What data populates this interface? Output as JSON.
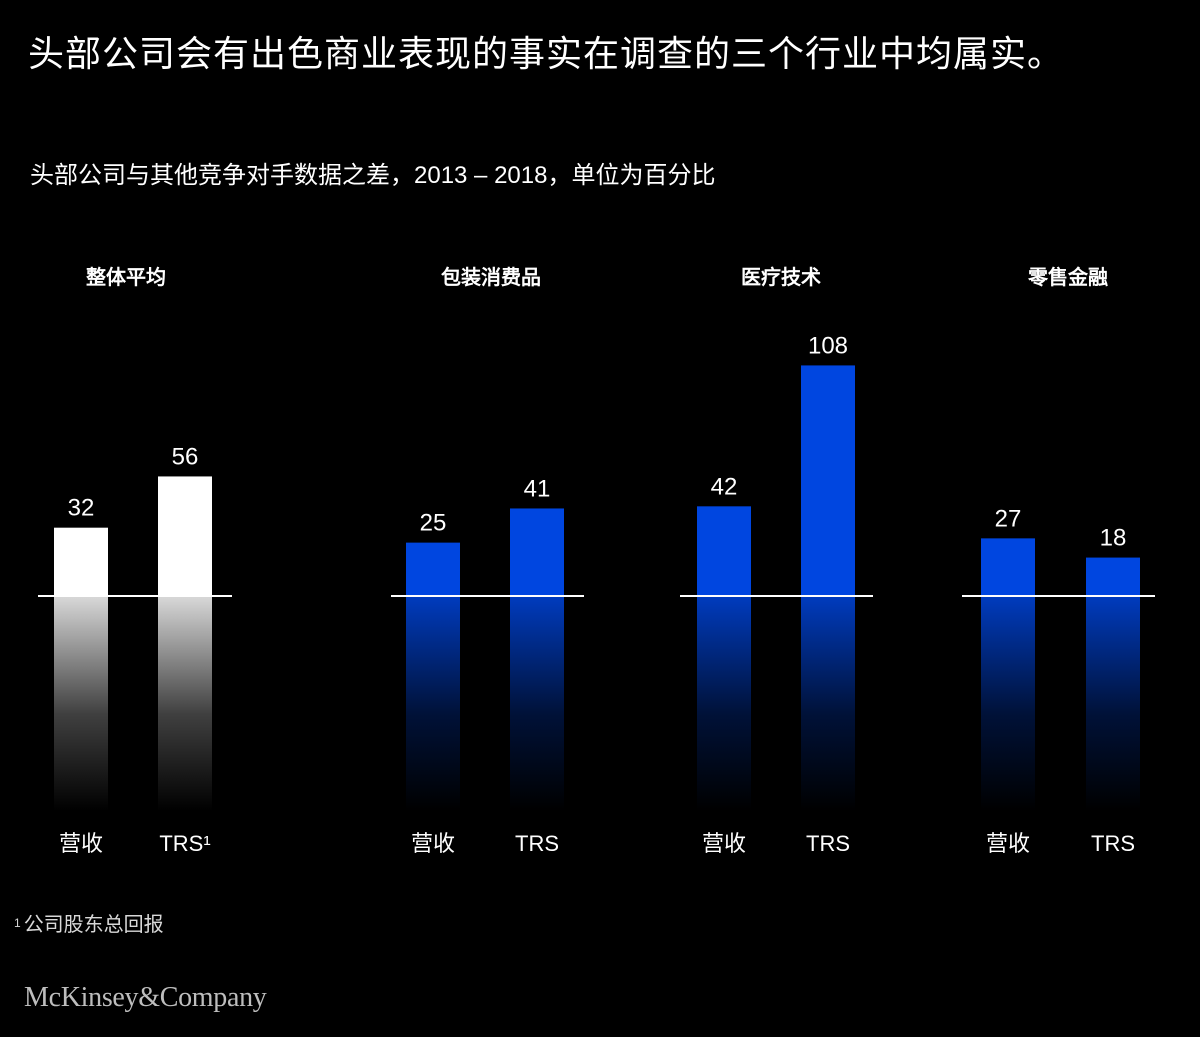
{
  "title": "头部公司会有出色商业表现的事实在调查的三个行业中均属实。",
  "subtitle": "头部公司与其他竞争对手数据之差，2013 – 2018，单位为百分比",
  "footnote": {
    "marker": "1",
    "text": "公司股东总回报"
  },
  "logo": "McKinsey&Company",
  "colors": {
    "white_bar": "#ffffff",
    "blue_bar": "#0046e0",
    "background": "#000000"
  },
  "chart_data": [
    {
      "type": "bar",
      "title": "整体平均",
      "categories": [
        "营收",
        "TRS¹"
      ],
      "values": [
        32,
        56
      ],
      "color": "#ffffff"
    },
    {
      "type": "bar",
      "title": "包装消费品",
      "categories": [
        "营收",
        "TRS"
      ],
      "values": [
        25,
        41
      ],
      "color": "#0046e0"
    },
    {
      "type": "bar",
      "title": "医疗技术",
      "categories": [
        "营收",
        "TRS"
      ],
      "values": [
        42,
        108
      ],
      "color": "#0046e0"
    },
    {
      "type": "bar",
      "title": "零售金融",
      "categories": [
        "营收",
        "TRS"
      ],
      "values": [
        27,
        18
      ],
      "color": "#0046e0"
    }
  ]
}
